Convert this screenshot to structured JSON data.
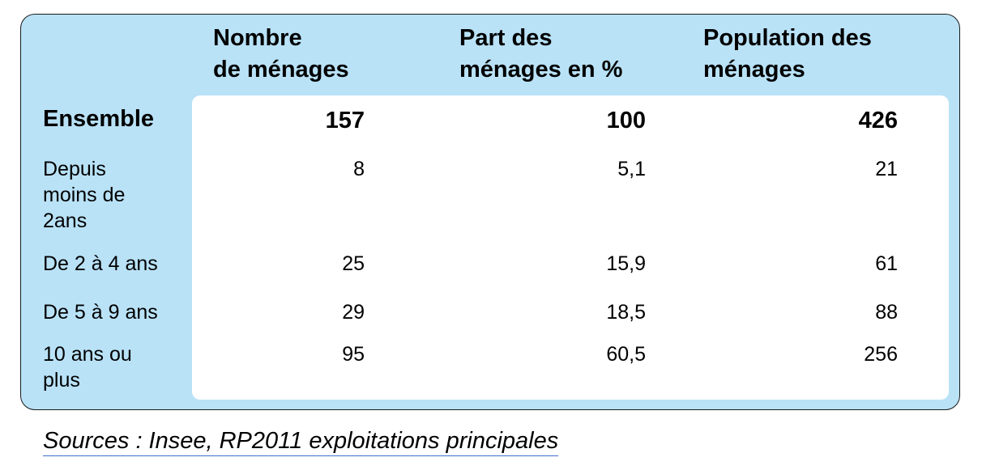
{
  "table": {
    "headers": {
      "col1": [
        "Nombre",
        "de ménages"
      ],
      "col2": [
        "Part des",
        "ménages en %"
      ],
      "col3": [
        "Population des",
        "ménages"
      ]
    },
    "rows": [
      {
        "label": [
          "Ensemble"
        ],
        "values": [
          "157",
          "100",
          "426"
        ],
        "bold": true
      },
      {
        "label": [
          "Depuis",
          "moins de",
          "2ans"
        ],
        "values": [
          "8",
          "5,1",
          "21"
        ]
      },
      {
        "label": [
          "De 2 à 4 ans"
        ],
        "values": [
          "25",
          "15,9",
          "61"
        ]
      },
      {
        "label": [
          "De 5 à 9 ans"
        ],
        "values": [
          "29",
          "18,5",
          "88"
        ]
      },
      {
        "label": [
          "10 ans ou",
          "plus"
        ],
        "values": [
          "95",
          "60,5",
          "256"
        ]
      }
    ]
  },
  "source": "Sources :  Insee, RP2011 exploitations principales",
  "colors": {
    "panel": "#b9e2f7",
    "inner": "#ffffff",
    "border": "#1a1a1a"
  }
}
